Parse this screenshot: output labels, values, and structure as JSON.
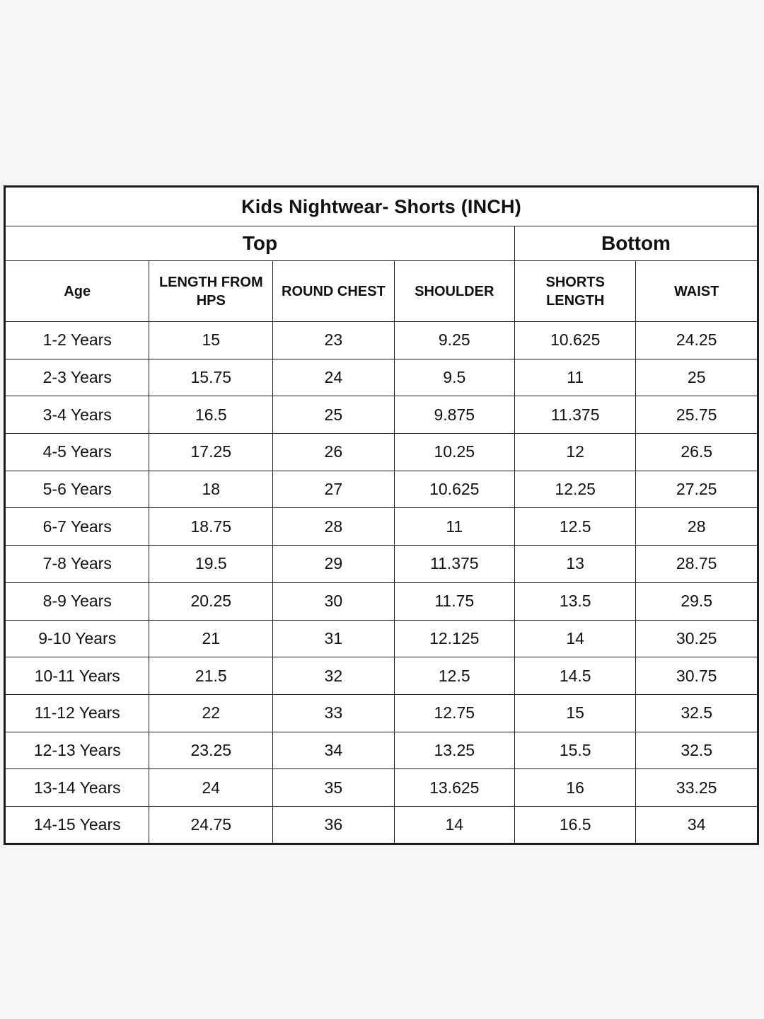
{
  "page": {
    "background_color": "#f5f6f6",
    "table_border_color": "#1c1c1c",
    "cell_background_color": "#ffffff",
    "text_color": "#111111"
  },
  "table": {
    "title": "Kids Nightwear- Shorts (INCH)",
    "groups": [
      {
        "label": "Top",
        "colspan": 4
      },
      {
        "label": "Bottom",
        "colspan": 2
      }
    ],
    "columns": [
      "Age",
      "LENGTH FROM HPS",
      "ROUND CHEST",
      "SHOULDER",
      "SHORTS LENGTH",
      "WAIST"
    ],
    "rows": [
      [
        "1-2 Years",
        "15",
        "23",
        "9.25",
        "10.625",
        "24.25"
      ],
      [
        "2-3 Years",
        "15.75",
        "24",
        "9.5",
        "11",
        "25"
      ],
      [
        "3-4 Years",
        "16.5",
        "25",
        "9.875",
        "11.375",
        "25.75"
      ],
      [
        "4-5 Years",
        "17.25",
        "26",
        "10.25",
        "12",
        "26.5"
      ],
      [
        "5-6 Years",
        "18",
        "27",
        "10.625",
        "12.25",
        "27.25"
      ],
      [
        "6-7 Years",
        "18.75",
        "28",
        "11",
        "12.5",
        "28"
      ],
      [
        "7-8 Years",
        "19.5",
        "29",
        "11.375",
        "13",
        "28.75"
      ],
      [
        "8-9 Years",
        "20.25",
        "30",
        "11.75",
        "13.5",
        "29.5"
      ],
      [
        "9-10 Years",
        "21",
        "31",
        "12.125",
        "14",
        "30.25"
      ],
      [
        "10-11 Years",
        "21.5",
        "32",
        "12.5",
        "14.5",
        "30.75"
      ],
      [
        "11-12 Years",
        "22",
        "33",
        "12.75",
        "15",
        "32.5"
      ],
      [
        "12-13 Years",
        "23.25",
        "34",
        "13.25",
        "15.5",
        "32.5"
      ],
      [
        "13-14 Years",
        "24",
        "35",
        "13.625",
        "16",
        "33.25"
      ],
      [
        "14-15 Years",
        "24.75",
        "36",
        "14",
        "16.5",
        "34"
      ]
    ]
  }
}
